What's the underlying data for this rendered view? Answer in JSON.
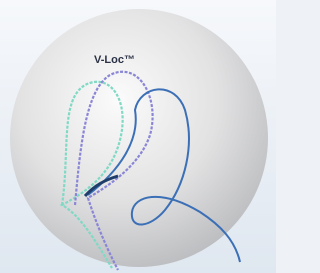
{
  "label": "V-Loc™"
}
